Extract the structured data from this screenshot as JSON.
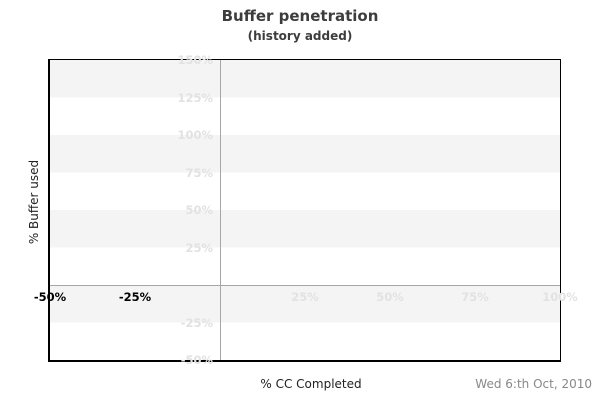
{
  "chart": {
    "title": "Buffer penetration",
    "subtitle": "(history added)",
    "ylabel": "% Buffer used",
    "xlabel": "% CC Completed",
    "date_note": "Wed 6:th Oct, 2010"
  },
  "plot": {
    "x_min": -50,
    "x_max": 100,
    "y_min": -50,
    "y_max": 150,
    "y_ticks": [
      {
        "label": "150%",
        "value": 150
      },
      {
        "label": "125%",
        "value": 125
      },
      {
        "label": "100%",
        "value": 100
      },
      {
        "label": "75%",
        "value": 75
      },
      {
        "label": "50%",
        "value": 50
      },
      {
        "label": "25%",
        "value": 25
      },
      {
        "label": "-25%",
        "value": -25
      },
      {
        "label": "-50%",
        "value": -50
      }
    ],
    "x_ticks": [
      {
        "label": "-50%",
        "value": -50,
        "emphasis": "dark"
      },
      {
        "label": "-25%",
        "value": -25,
        "emphasis": "dark"
      },
      {
        "label": "25%",
        "value": 25,
        "emphasis": "muted"
      },
      {
        "label": "50%",
        "value": 50,
        "emphasis": "muted"
      },
      {
        "label": "75%",
        "value": 75,
        "emphasis": "muted"
      },
      {
        "label": "100%",
        "value": 100,
        "emphasis": "muted"
      }
    ]
  },
  "colors": {
    "band": "#f4f4f4",
    "background": "#ffffff",
    "frame": "#000000",
    "zero_line": "#a6a6a6",
    "muted_label": "#e2e2e2",
    "dark_label": "#000000",
    "title_text": "#3d3d3d",
    "axis_title_text": "#222222",
    "date_text": "#888888"
  },
  "chart_data": {
    "type": "line",
    "title": "Buffer penetration",
    "subtitle": "(history added)",
    "xlabel": "% CC Completed",
    "ylabel": "% Buffer used",
    "xlim": [
      -50,
      100
    ],
    "ylim": [
      -50,
      150
    ],
    "x_tick_labels": [
      "-50%",
      "-25%",
      "25%",
      "50%",
      "75%",
      "100%"
    ],
    "y_tick_labels": [
      "150%",
      "125%",
      "100%",
      "75%",
      "50%",
      "25%",
      "-25%",
      "-50%"
    ],
    "series": [],
    "legend": "none",
    "grid": "alternating horizontal gray/white bands every 25%; gray zero-axis crosshair lines at x=0% and y=0%",
    "annotations": [
      "Wed 6:th Oct, 2010"
    ]
  }
}
